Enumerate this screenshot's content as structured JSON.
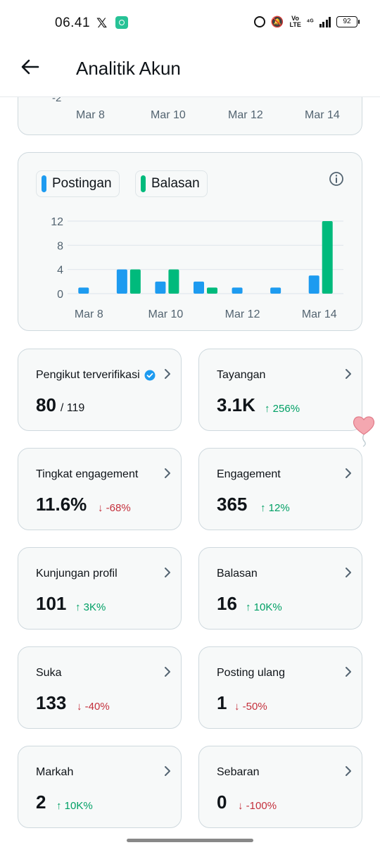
{
  "status_bar": {
    "time": "06.41",
    "x_logo": "𝕏",
    "volte": "Vo LTE",
    "network": "⁴ᴳ",
    "battery": "92"
  },
  "header": {
    "title": "Analitik Akun",
    "back_icon": "arrow-left-icon"
  },
  "top_chart": {
    "neg_tick": "-2",
    "x_labels": [
      "Mar 8",
      "Mar 10",
      "Mar 12",
      "Mar 14"
    ]
  },
  "chart_data": {
    "type": "bar",
    "categories": [
      "Mar 8",
      "Mar 9",
      "Mar 10",
      "Mar 11",
      "Mar 12",
      "Mar 13",
      "Mar 14"
    ],
    "x_tick_labels": [
      "Mar 8",
      "Mar 10",
      "Mar 12",
      "Mar 14"
    ],
    "y_ticks": [
      "0",
      "4",
      "8",
      "12"
    ],
    "ylim": [
      0,
      12
    ],
    "series": [
      {
        "name": "Postingan",
        "color": "#1d9bf0",
        "values": [
          1,
          4,
          2,
          2,
          1,
          1,
          3
        ]
      },
      {
        "name": "Balasan",
        "color": "#00ba7c",
        "values": [
          0,
          4,
          4,
          1,
          0,
          0,
          12
        ]
      }
    ],
    "grid": true,
    "legend_position": "top-left"
  },
  "metrics": [
    {
      "label": "Pengikut terverifikasi",
      "verified": true,
      "value": "80",
      "sub": "/ 119",
      "change": "",
      "dir": ""
    },
    {
      "label": "Tayangan",
      "value": "3.1K",
      "sub": "",
      "change": "↑ 256%",
      "dir": "up"
    },
    {
      "label": "Tingkat engagement",
      "value": "11.6%",
      "sub": "",
      "change": "↓ -68%",
      "dir": "down"
    },
    {
      "label": "Engagement",
      "value": "365",
      "sub": "",
      "change": "↑ 12%",
      "dir": "up"
    },
    {
      "label": "Kunjungan profil",
      "value": "101",
      "sub": "",
      "change": "↑ 3K%",
      "dir": "up"
    },
    {
      "label": "Balasan",
      "value": "16",
      "sub": "",
      "change": "↑ 10K%",
      "dir": "up"
    },
    {
      "label": "Suka",
      "value": "133",
      "sub": "",
      "change": "↓ -40%",
      "dir": "down"
    },
    {
      "label": "Posting ulang",
      "value": "1",
      "sub": "",
      "change": "↓ -50%",
      "dir": "down"
    },
    {
      "label": "Markah",
      "value": "2",
      "sub": "",
      "change": "↑ 10K%",
      "dir": "up"
    },
    {
      "label": "Sebaran",
      "value": "0",
      "sub": "",
      "change": "↓ -100%",
      "dir": "down"
    }
  ]
}
